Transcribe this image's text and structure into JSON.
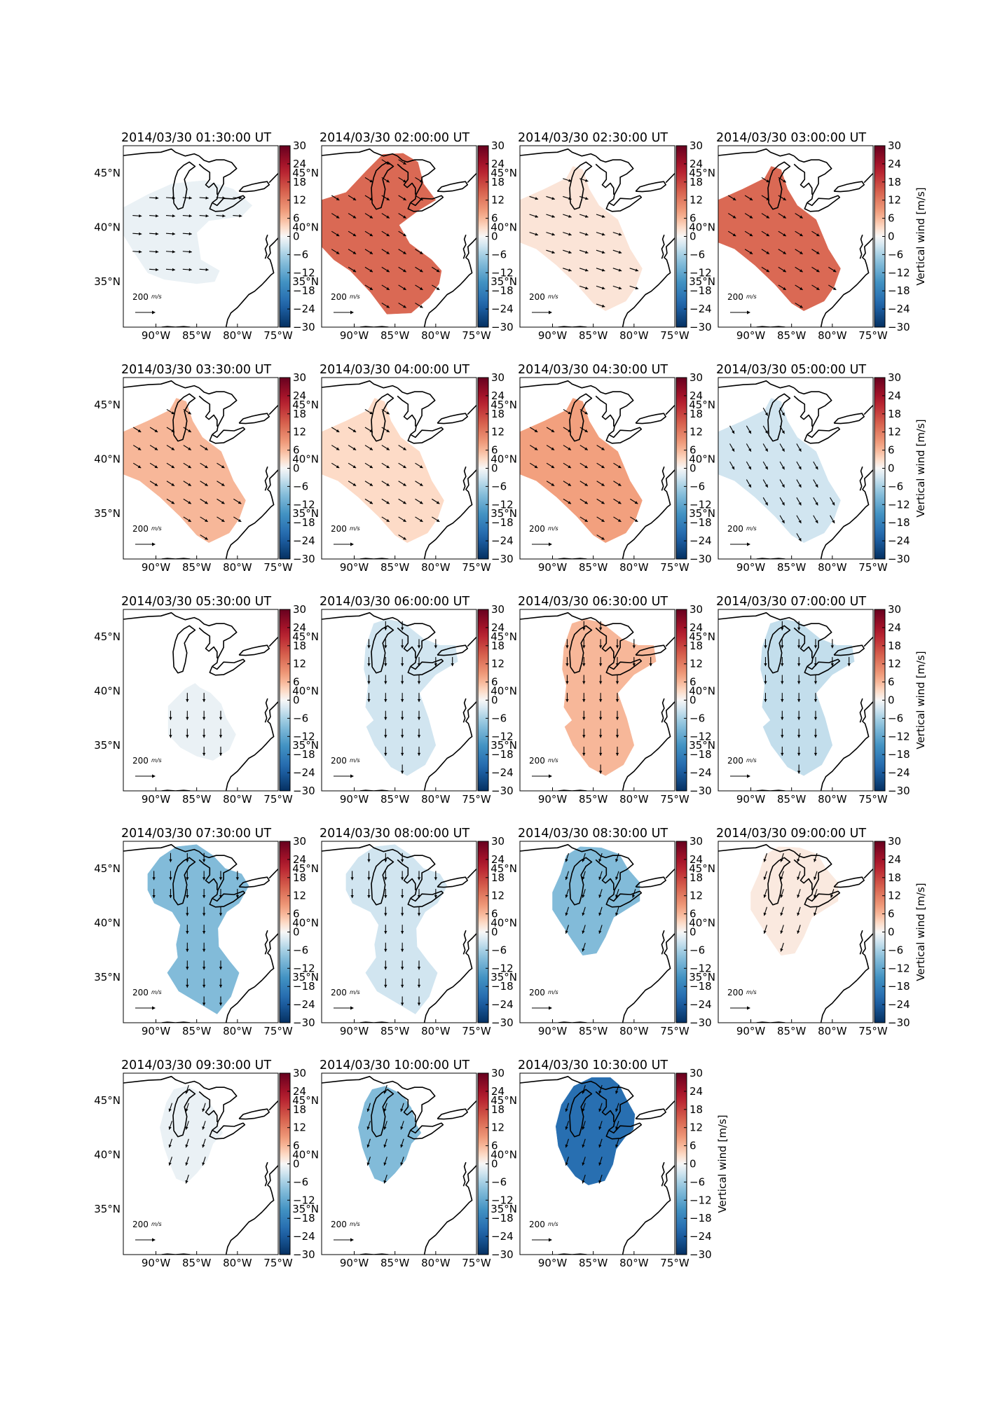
{
  "figure": {
    "map_extent": {
      "lon": [
        -94,
        -75
      ],
      "lat": [
        30.8,
        47.5
      ]
    },
    "lon_ticks": [
      {
        "lon": -90,
        "label": "90°W"
      },
      {
        "lon": -85,
        "label": "85°W"
      },
      {
        "lon": -80,
        "label": "80°W"
      },
      {
        "lon": -75,
        "label": "75°W"
      }
    ],
    "lat_ticks": [
      {
        "lat": 45,
        "label": "45°N"
      },
      {
        "lat": 40,
        "label": "40°N"
      },
      {
        "lat": 35,
        "label": "35°N"
      }
    ],
    "colorbar": {
      "min": -30,
      "max": 30,
      "ticks": [
        "30",
        "24",
        "18",
        "12",
        "6",
        "0",
        "−6",
        "−12",
        "−18",
        "−24",
        "−30"
      ],
      "label": "Vertical wind [m/s]",
      "cmap": "RdBu_r"
    },
    "scale_arrow_label": "200",
    "scale_arrow_unit": "m/s",
    "panels": [
      {
        "title": "2014/03/30 01:30:00 UT",
        "value": -1,
        "zone": "A",
        "dir": "east",
        "cbar_label": false
      },
      {
        "title": "2014/03/30 02:00:00 UT",
        "value": 14,
        "zone": "B",
        "dir": "se",
        "cbar_label": false
      },
      {
        "title": "2014/03/30 02:30:00 UT",
        "value": 2,
        "zone": "C",
        "dir": "ese",
        "cbar_label": false
      },
      {
        "title": "2014/03/30 03:00:00 UT",
        "value": 14,
        "zone": "C",
        "dir": "se",
        "cbar_label": true
      },
      {
        "title": "2014/03/30 03:30:00 UT",
        "value": 6,
        "zone": "C",
        "dir": "se",
        "cbar_label": false
      },
      {
        "title": "2014/03/30 04:00:00 UT",
        "value": 3,
        "zone": "C",
        "dir": "se",
        "cbar_label": false
      },
      {
        "title": "2014/03/30 04:30:00 UT",
        "value": 8,
        "zone": "C",
        "dir": "se",
        "cbar_label": false
      },
      {
        "title": "2014/03/30 05:00:00 UT",
        "value": -3,
        "zone": "C",
        "dir": "sse",
        "cbar_label": true
      },
      {
        "title": "2014/03/30 05:30:00 UT",
        "value": -1,
        "zone": "D",
        "dir": "south",
        "cbar_label": false
      },
      {
        "title": "2014/03/30 06:00:00 UT",
        "value": -3,
        "zone": "E",
        "dir": "south",
        "cbar_label": false
      },
      {
        "title": "2014/03/30 06:30:00 UT",
        "value": 6,
        "zone": "E",
        "dir": "south",
        "cbar_label": false
      },
      {
        "title": "2014/03/30 07:00:00 UT",
        "value": -4,
        "zone": "E",
        "dir": "south",
        "cbar_label": true
      },
      {
        "title": "2014/03/30 07:30:00 UT",
        "value": -9,
        "zone": "F",
        "dir": "south",
        "cbar_label": false
      },
      {
        "title": "2014/03/30 08:00:00 UT",
        "value": -3,
        "zone": "F",
        "dir": "south",
        "cbar_label": false
      },
      {
        "title": "2014/03/30 08:30:00 UT",
        "value": -9,
        "zone": "G",
        "dir": "ssw",
        "cbar_label": false
      },
      {
        "title": "2014/03/30 09:00:00 UT",
        "value": 1.5,
        "zone": "G",
        "dir": "ssw",
        "cbar_label": true
      },
      {
        "title": "2014/03/30 09:30:00 UT",
        "value": -1,
        "zone": "H",
        "dir": "ssw",
        "cbar_label": false
      },
      {
        "title": "2014/03/30 10:00:00 UT",
        "value": -9,
        "zone": "H",
        "dir": "ssw",
        "cbar_label": false
      },
      {
        "title": "2014/03/30 10:30:00 UT",
        "value": -21,
        "zone": "I",
        "dir": "ssw",
        "cbar_label": true
      }
    ]
  }
}
